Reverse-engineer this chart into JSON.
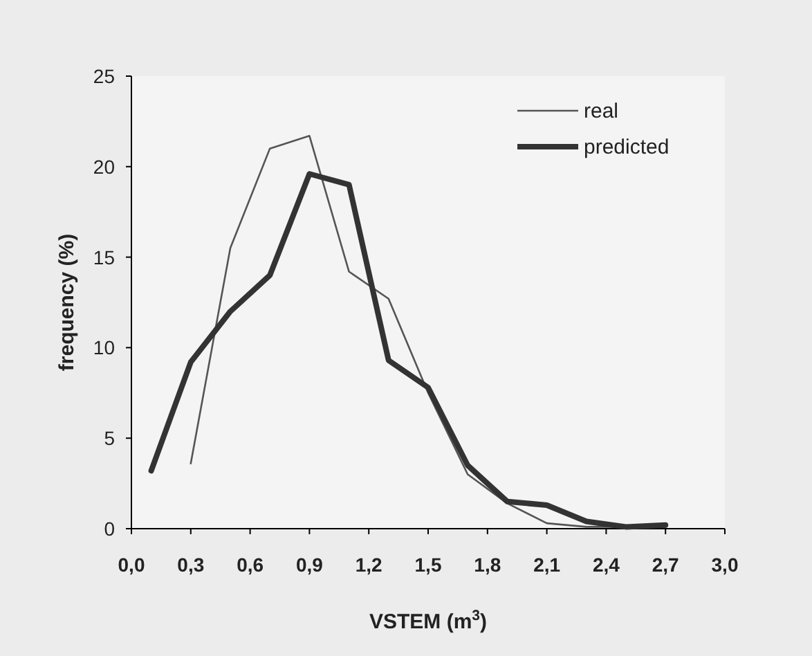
{
  "chart_data": {
    "type": "line",
    "xlabel": "VSTEM (m$^{3}$)",
    "ylabel": "frequency (%)",
    "xlim": [
      0,
      3
    ],
    "xticks": [
      {
        "value": 0,
        "label": "0,0"
      },
      {
        "value": 0.3,
        "label": "0,3"
      },
      {
        "value": 0.6,
        "label": "0,6"
      },
      {
        "value": 0.9,
        "label": "0,9"
      },
      {
        "value": 1.2,
        "label": "1,2"
      },
      {
        "value": 1.5,
        "label": "1,5"
      },
      {
        "value": 1.8,
        "label": "1,8"
      },
      {
        "value": 2.1,
        "label": "2,1"
      },
      {
        "value": 2.4,
        "label": "2,4"
      },
      {
        "value": 2.7,
        "label": "2,7"
      },
      {
        "value": 3,
        "label": "3,0"
      }
    ],
    "ylim": [
      0,
      25
    ],
    "yticks": [
      0,
      5,
      10,
      15,
      20,
      25
    ],
    "legend": "top right",
    "grid": false,
    "marker": "none",
    "line_style": "solid",
    "series": [
      {
        "name": "real",
        "color": "#555555",
        "x": [
          0.3,
          0.5,
          0.7,
          0.9,
          1.1,
          1.3,
          1.5,
          1.7,
          1.9,
          2.1,
          2.3,
          2.5,
          2.7
        ],
        "values": [
          3.6,
          15.5,
          21,
          21.7,
          14.2,
          12.7,
          7.5,
          3,
          1.4,
          0.3,
          0.1,
          0.1,
          0.1
        ]
      },
      {
        "name": "predicted",
        "color": "#333333",
        "x": [
          0.1,
          0.3,
          0.5,
          0.7,
          0.9,
          1.1,
          1.3,
          1.5,
          1.7,
          1.9,
          2.1,
          2.3,
          2.5,
          2.7
        ],
        "values": [
          3.2,
          9.2,
          12,
          14,
          19.6,
          19,
          9.3,
          7.8,
          3.5,
          1.5,
          1.3,
          0.4,
          0.1,
          0.2
        ]
      }
    ]
  }
}
